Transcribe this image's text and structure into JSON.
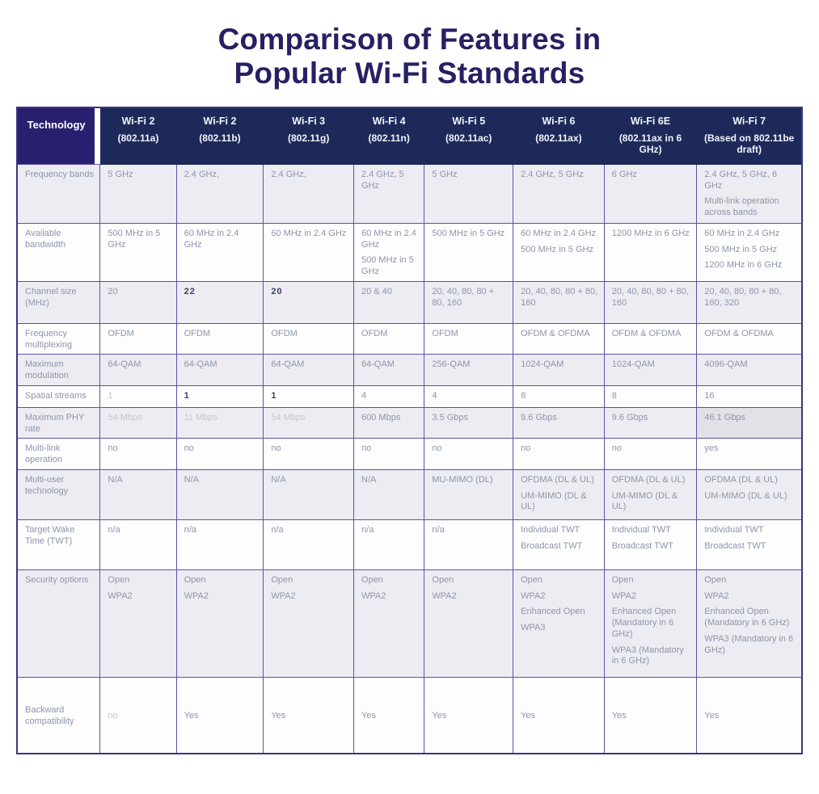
{
  "title": {
    "line1": "Comparison of Features in",
    "line2": "Popular Wi-Fi Standards"
  },
  "table": {
    "corner_header": "Technology",
    "columns": [
      {
        "name": "Wi-Fi 2",
        "sub": "(802.11a)"
      },
      {
        "name": "Wi-Fi 2",
        "sub": "(802.11b)"
      },
      {
        "name": "Wi-Fi 3",
        "sub": "(802.11g)"
      },
      {
        "name": "Wi-Fi 4",
        "sub": "(802.11n)"
      },
      {
        "name": "Wi-Fi 5",
        "sub": "(802.11ac)"
      },
      {
        "name": "Wi-Fi 6",
        "sub": "(802.11ax)"
      },
      {
        "name": "Wi-Fi 6E",
        "sub": "(802.11ax in 6 GHz)"
      },
      {
        "name": "Wi-Fi 7",
        "sub": "(Based on 802.11be draft)"
      }
    ],
    "rows": [
      {
        "label": "Frequency bands",
        "cells": [
          {
            "lines": [
              "5 GHz"
            ]
          },
          {
            "lines": [
              "2.4 GHz,"
            ]
          },
          {
            "lines": [
              "2.4 GHz,"
            ]
          },
          {
            "lines": [
              "2.4 GHz, 5 GHz"
            ]
          },
          {
            "lines": [
              "5 GHz"
            ]
          },
          {
            "lines": [
              "2.4 GHz, 5 GHz"
            ]
          },
          {
            "lines": [
              "6 GHz"
            ]
          },
          {
            "lines": [
              "2.4 GHz, 5 GHz, 6 GHz",
              "Multi-link operation across bands"
            ]
          }
        ]
      },
      {
        "label": "Available bandwidth",
        "cells": [
          {
            "lines": [
              "500 MHz in 5 GHz"
            ],
            "style": "pushdown"
          },
          {
            "lines": [
              "60 MHz in 2.4 GHz"
            ]
          },
          {
            "lines": [
              "60 MHz in 2.4 GHz"
            ]
          },
          {
            "lines": [
              "60 MHz in 2.4 GHz",
              "500 MHz in 5 GHz"
            ]
          },
          {
            "lines": [
              "500 MHz in 5 GHz"
            ]
          },
          {
            "lines": [
              "60 MHz in 2.4 GHz",
              "500 MHz in 5 GHz"
            ]
          },
          {
            "lines": [
              "1200 MHz in 6 GHz"
            ]
          },
          {
            "lines": [
              "60 MHz in 2.4 GHz",
              "500 MHz in 5 GHz",
              "1200 MHz in 6 GHz"
            ]
          }
        ]
      },
      {
        "label": "Channel size (MHz)",
        "cells": [
          {
            "lines": [
              "20"
            ]
          },
          {
            "lines": [
              "22"
            ],
            "style": "bold"
          },
          {
            "lines": [
              "20"
            ],
            "style": "bold"
          },
          {
            "lines": [
              "20 & 40"
            ]
          },
          {
            "lines": [
              "20, 40, 80, 80 + 80, 160"
            ]
          },
          {
            "lines": [
              "20, 40, 80, 80 + 80, 160"
            ]
          },
          {
            "lines": [
              "20, 40, 80, 80 + 80, 160"
            ]
          },
          {
            "lines": [
              "20, 40, 80, 80 + 80, 160, 320"
            ]
          }
        ]
      },
      {
        "label": "Frequency multiplexing",
        "cells": [
          {
            "lines": [
              "OFDM"
            ]
          },
          {
            "lines": [
              "OFDM"
            ]
          },
          {
            "lines": [
              "OFDM"
            ]
          },
          {
            "lines": [
              "OFDM"
            ]
          },
          {
            "lines": [
              "OFDM"
            ]
          },
          {
            "lines": [
              "OFDM & OFDMA"
            ]
          },
          {
            "lines": [
              "OFDM & OFDMA"
            ]
          },
          {
            "lines": [
              "OFDM & OFDMA"
            ]
          }
        ]
      },
      {
        "label": "Maximum modulation",
        "cells": [
          {
            "lines": [
              "64-QAM"
            ]
          },
          {
            "lines": [
              "64-QAM"
            ]
          },
          {
            "lines": [
              "64-QAM"
            ]
          },
          {
            "lines": [
              "64-QAM"
            ]
          },
          {
            "lines": [
              "256-QAM"
            ]
          },
          {
            "lines": [
              "1024-QAM"
            ]
          },
          {
            "lines": [
              "1024-QAM"
            ]
          },
          {
            "lines": [
              "4096-QAM"
            ]
          }
        ]
      },
      {
        "label": "Spatial streams",
        "cells": [
          {
            "lines": [
              "1"
            ],
            "style": "faded"
          },
          {
            "lines": [
              "1"
            ],
            "style": "bold"
          },
          {
            "lines": [
              "1"
            ],
            "style": "bold"
          },
          {
            "lines": [
              "4"
            ]
          },
          {
            "lines": [
              "4"
            ]
          },
          {
            "lines": [
              "8"
            ]
          },
          {
            "lines": [
              "8"
            ]
          },
          {
            "lines": [
              "16"
            ]
          }
        ]
      },
      {
        "label": "Maximum PHY rate",
        "cells": [
          {
            "lines": [
              "54 Mbps"
            ],
            "style": "faded"
          },
          {
            "lines": [
              "11 Mbps"
            ],
            "style": "faded"
          },
          {
            "lines": [
              "54 Mbps"
            ],
            "style": "faded"
          },
          {
            "lines": [
              "600 Mbps"
            ]
          },
          {
            "lines": [
              "3.5 Gbps"
            ]
          },
          {
            "lines": [
              "9.6 Gbps"
            ]
          },
          {
            "lines": [
              "9.6 Gbps"
            ]
          },
          {
            "lines": [
              "46.1 Gbps"
            ],
            "style": "shaded"
          }
        ]
      },
      {
        "label": "Multi-link operation",
        "cells": [
          {
            "lines": [
              "no"
            ]
          },
          {
            "lines": [
              "no"
            ]
          },
          {
            "lines": [
              "no"
            ]
          },
          {
            "lines": [
              "no"
            ]
          },
          {
            "lines": [
              "no"
            ]
          },
          {
            "lines": [
              "no"
            ]
          },
          {
            "lines": [
              "no"
            ]
          },
          {
            "lines": [
              "yes"
            ]
          }
        ]
      },
      {
        "label": "Multi-user technology",
        "cells": [
          {
            "lines": [
              "N/A"
            ]
          },
          {
            "lines": [
              "N/A"
            ]
          },
          {
            "lines": [
              "N/A"
            ]
          },
          {
            "lines": [
              "N/A"
            ]
          },
          {
            "lines": [
              "MU-MIMO (DL)"
            ]
          },
          {
            "lines": [
              "OFDMA (DL & UL)",
              "UM-MIMO (DL & UL)"
            ]
          },
          {
            "lines": [
              "OFDMA (DL & UL)",
              "UM-MIMO (DL & UL)"
            ]
          },
          {
            "lines": [
              "OFDMA (DL & UL)",
              "UM-MIMO (DL & UL)"
            ]
          }
        ]
      },
      {
        "label": "Target Wake Time (TWT)",
        "cells": [
          {
            "lines": [
              "n/a"
            ]
          },
          {
            "lines": [
              "n/a"
            ]
          },
          {
            "lines": [
              "n/a"
            ]
          },
          {
            "lines": [
              "n/a"
            ]
          },
          {
            "lines": [
              "n/a"
            ]
          },
          {
            "lines": [
              "Individual TWT",
              "Broadcast TWT"
            ]
          },
          {
            "lines": [
              "Individual TWT",
              "Broadcast TWT"
            ]
          },
          {
            "lines": [
              "Individual TWT",
              "Broadcast TWT"
            ]
          }
        ]
      },
      {
        "label": "Security options",
        "cells": [
          {
            "lines": [
              "Open",
              "WPA2"
            ]
          },
          {
            "lines": [
              "Open",
              "WPA2"
            ]
          },
          {
            "lines": [
              "Open",
              "WPA2"
            ]
          },
          {
            "lines": [
              "Open",
              "WPA2"
            ]
          },
          {
            "lines": [
              "Open",
              "WPA2"
            ]
          },
          {
            "lines": [
              "Open",
              "WPA2",
              "Enhanced Open",
              "WPA3"
            ]
          },
          {
            "lines": [
              "Open",
              "WPA2",
              "Enhanced Open (Mandatory in 6 GHz)",
              "WPA3 (Mandatory in 6 GHz)"
            ]
          },
          {
            "lines": [
              "Open",
              "WPA2",
              "Enhanced Open (Mandatory in 6 GHz)",
              "WPA3 (Mandatory in 6 GHz)"
            ]
          }
        ]
      },
      {
        "label": "Backward compatibility",
        "cells": [
          {
            "lines": [
              "no"
            ],
            "style": "faded"
          },
          {
            "lines": [
              "Yes"
            ]
          },
          {
            "lines": [
              "Yes"
            ]
          },
          {
            "lines": [
              "Yes"
            ]
          },
          {
            "lines": [
              "Yes"
            ]
          },
          {
            "lines": [
              "Yes"
            ]
          },
          {
            "lines": [
              "Yes"
            ]
          },
          {
            "lines": [
              "Yes"
            ]
          }
        ]
      }
    ]
  },
  "colors": {
    "header_navy": "#1d2a59",
    "corner_purple": "#281f6e",
    "border_indigo": "#5c52a6",
    "row_gray": "#edecf2",
    "row_white": "#fdfdfe",
    "body_text": "#8c96a9",
    "title_text": "#262163"
  }
}
